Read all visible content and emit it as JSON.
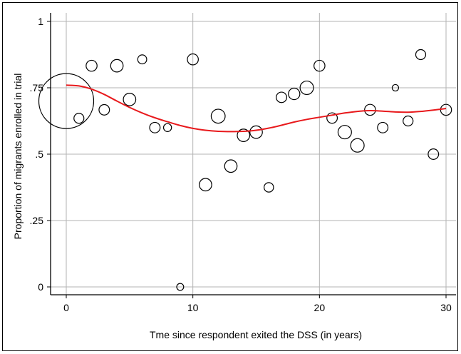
{
  "chart_data": {
    "type": "scatter",
    "xlabel": "Tme since respondent exited the DSS (in years)",
    "ylabel": "Proportion of migrants enrolled in trial",
    "xlim": [
      0,
      30
    ],
    "ylim": [
      0,
      1
    ],
    "x_ticks": [
      0,
      10,
      20,
      30
    ],
    "x_tick_labels": [
      "0",
      "10",
      "20",
      "30"
    ],
    "y_ticks": [
      0,
      0.25,
      0.5,
      0.75,
      1
    ],
    "y_tick_labels": [
      "0",
      ".25",
      ".5",
      ".75",
      "1"
    ],
    "grid": true,
    "marker_fill": "none",
    "marker_color": "#000000",
    "smooth_color": "#e8191c",
    "points": [
      {
        "x": 0,
        "y": 0.7,
        "size": 5.5
      },
      {
        "x": 1,
        "y": 0.635,
        "size": 1.0
      },
      {
        "x": 2,
        "y": 0.833,
        "size": 1.1
      },
      {
        "x": 3,
        "y": 0.667,
        "size": 1.05
      },
      {
        "x": 4,
        "y": 0.833,
        "size": 1.25
      },
      {
        "x": 5,
        "y": 0.706,
        "size": 1.25
      },
      {
        "x": 6,
        "y": 0.857,
        "size": 0.9
      },
      {
        "x": 7,
        "y": 0.6,
        "size": 1.05
      },
      {
        "x": 8,
        "y": 0.6,
        "size": 0.8
      },
      {
        "x": 9,
        "y": 0.0,
        "size": 0.7
      },
      {
        "x": 10,
        "y": 0.857,
        "size": 1.1
      },
      {
        "x": 11,
        "y": 0.385,
        "size": 1.25
      },
      {
        "x": 12,
        "y": 0.643,
        "size": 1.4
      },
      {
        "x": 13,
        "y": 0.455,
        "size": 1.25
      },
      {
        "x": 14,
        "y": 0.571,
        "size": 1.25
      },
      {
        "x": 15,
        "y": 0.583,
        "size": 1.25
      },
      {
        "x": 16,
        "y": 0.375,
        "size": 0.95
      },
      {
        "x": 17,
        "y": 0.714,
        "size": 1.05
      },
      {
        "x": 18,
        "y": 0.727,
        "size": 1.15
      },
      {
        "x": 19,
        "y": 0.75,
        "size": 1.35
      },
      {
        "x": 20,
        "y": 0.833,
        "size": 1.1
      },
      {
        "x": 21,
        "y": 0.636,
        "size": 1.05
      },
      {
        "x": 22,
        "y": 0.583,
        "size": 1.35
      },
      {
        "x": 23,
        "y": 0.533,
        "size": 1.35
      },
      {
        "x": 24,
        "y": 0.667,
        "size": 1.1
      },
      {
        "x": 25,
        "y": 0.6,
        "size": 1.05
      },
      {
        "x": 26,
        "y": 0.75,
        "size": 0.65
      },
      {
        "x": 27,
        "y": 0.625,
        "size": 1.0
      },
      {
        "x": 28,
        "y": 0.875,
        "size": 1.0
      },
      {
        "x": 29,
        "y": 0.5,
        "size": 1.05
      },
      {
        "x": 30,
        "y": 0.667,
        "size": 1.1
      }
    ],
    "smooth": [
      {
        "x": 0,
        "y": 0.76
      },
      {
        "x": 1,
        "y": 0.757
      },
      {
        "x": 2,
        "y": 0.745
      },
      {
        "x": 3,
        "y": 0.725
      },
      {
        "x": 4,
        "y": 0.7
      },
      {
        "x": 5,
        "y": 0.676
      },
      {
        "x": 6,
        "y": 0.655
      },
      {
        "x": 7,
        "y": 0.637
      },
      {
        "x": 8,
        "y": 0.622
      },
      {
        "x": 9,
        "y": 0.608
      },
      {
        "x": 10,
        "y": 0.597
      },
      {
        "x": 11,
        "y": 0.59
      },
      {
        "x": 12,
        "y": 0.586
      },
      {
        "x": 13,
        "y": 0.585
      },
      {
        "x": 14,
        "y": 0.586
      },
      {
        "x": 15,
        "y": 0.59
      },
      {
        "x": 16,
        "y": 0.598
      },
      {
        "x": 17,
        "y": 0.609
      },
      {
        "x": 18,
        "y": 0.621
      },
      {
        "x": 19,
        "y": 0.631
      },
      {
        "x": 20,
        "y": 0.639
      },
      {
        "x": 21,
        "y": 0.647
      },
      {
        "x": 22,
        "y": 0.655
      },
      {
        "x": 23,
        "y": 0.661
      },
      {
        "x": 24,
        "y": 0.664
      },
      {
        "x": 25,
        "y": 0.662
      },
      {
        "x": 26,
        "y": 0.659
      },
      {
        "x": 27,
        "y": 0.658
      },
      {
        "x": 28,
        "y": 0.661
      },
      {
        "x": 29,
        "y": 0.666
      },
      {
        "x": 30,
        "y": 0.672
      }
    ]
  }
}
